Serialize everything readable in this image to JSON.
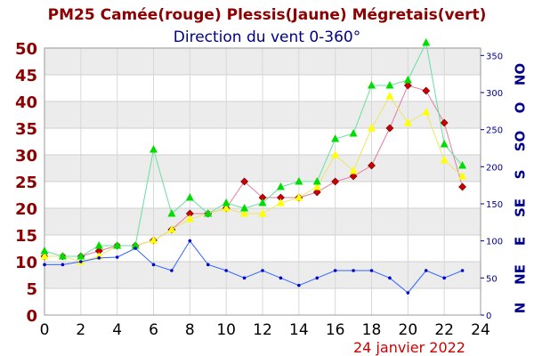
{
  "chart_data": {
    "type": "line",
    "title": "PM25 Camée(rouge) Plessis(Jaune) Mégretais(vert)",
    "subtitle": "Direction du vent 0-360°",
    "date_label": "24 janvier 2022",
    "x": [
      0,
      1,
      2,
      3,
      4,
      5,
      6,
      7,
      8,
      9,
      10,
      11,
      12,
      13,
      14,
      15,
      16,
      17,
      18,
      19,
      20,
      21,
      22,
      23
    ],
    "xlim": [
      0,
      24
    ],
    "xticks": [
      0,
      2,
      4,
      6,
      8,
      10,
      12,
      14,
      16,
      18,
      20,
      22,
      24
    ],
    "ylim": [
      0,
      50
    ],
    "yticks": [
      0,
      5,
      10,
      15,
      20,
      25,
      30,
      35,
      40,
      45,
      50
    ],
    "y2lim": [
      0,
      360
    ],
    "y2ticks": [
      0,
      50,
      100,
      150,
      200,
      250,
      300,
      350
    ],
    "direction_labels": [
      "N",
      "NE",
      "E",
      "SE",
      "S",
      "SO",
      "O",
      "NO"
    ],
    "grid": true,
    "series": [
      {
        "name": "Camée",
        "color": "#cc0000",
        "line_color": "#e87aa0",
        "marker": "diamond",
        "axis": "left",
        "values": [
          11,
          11,
          11,
          12,
          13,
          13,
          14,
          16,
          19,
          19,
          20,
          25,
          22,
          22,
          22,
          23,
          25,
          26,
          28,
          35,
          43,
          42,
          36,
          24
        ]
      },
      {
        "name": "Plessis",
        "color": "#ffff00",
        "line_color": "#e8e866",
        "marker": "triangle",
        "axis": "left",
        "values": [
          11,
          11,
          10,
          11,
          13,
          13,
          14,
          16,
          18,
          19,
          20,
          19,
          19,
          21,
          22,
          24,
          30,
          27,
          35,
          41,
          36,
          38,
          29,
          26
        ]
      },
      {
        "name": "Mégretais",
        "color": "#00dd00",
        "line_color": "#66e0a0",
        "marker": "triangle",
        "axis": "left",
        "values": [
          12,
          11,
          11,
          13,
          13,
          13,
          31,
          19,
          22,
          19,
          21,
          20,
          21,
          24,
          25,
          25,
          33,
          34,
          43,
          43,
          44,
          51,
          32,
          28
        ]
      },
      {
        "name": "Direction du vent",
        "color": "#0000cc",
        "line_color": "#3366ff",
        "marker": "dot",
        "axis": "right",
        "values": [
          68,
          68,
          72,
          77,
          78,
          90,
          68,
          60,
          100,
          68,
          60,
          50,
          60,
          50,
          40,
          50,
          60,
          60,
          60,
          50,
          30,
          60,
          50,
          60
        ]
      }
    ]
  }
}
